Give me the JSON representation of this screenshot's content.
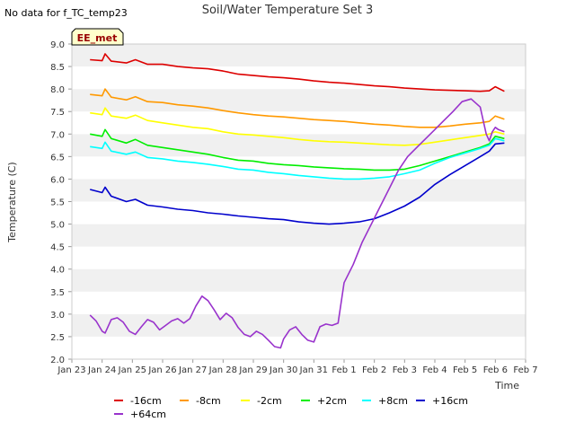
{
  "note": "No data for f_TC_temp23",
  "chart_data": {
    "type": "line",
    "title": "Soil/Water Temperature Set 3",
    "xlabel": "Time",
    "ylabel": "Temperature (C)",
    "badge": "EE_met",
    "xlim": [
      23,
      38
    ],
    "ylim": [
      2.0,
      9.0
    ],
    "grid": "horizontal bands",
    "legend_position": "bottom",
    "x_ticks": [
      {
        "x": 23,
        "label": "Jan 23"
      },
      {
        "x": 24,
        "label": "Jan 24"
      },
      {
        "x": 25,
        "label": "Jan 25"
      },
      {
        "x": 26,
        "label": "Jan 26"
      },
      {
        "x": 27,
        "label": "Jan 27"
      },
      {
        "x": 28,
        "label": "Jan 28"
      },
      {
        "x": 29,
        "label": "Jan 29"
      },
      {
        "x": 30,
        "label": "Jan 30"
      },
      {
        "x": 31,
        "label": "Jan 31"
      },
      {
        "x": 32,
        "label": "Feb 1"
      },
      {
        "x": 33,
        "label": "Feb 2"
      },
      {
        "x": 34,
        "label": "Feb 3"
      },
      {
        "x": 35,
        "label": "Feb 4"
      },
      {
        "x": 36,
        "label": "Feb 5"
      },
      {
        "x": 37,
        "label": "Feb 6"
      },
      {
        "x": 38,
        "label": "Feb 7"
      }
    ],
    "y_ticks": [
      2.0,
      2.5,
      3.0,
      3.5,
      4.0,
      4.5,
      5.0,
      5.5,
      6.0,
      6.5,
      7.0,
      7.5,
      8.0,
      8.5,
      9.0
    ],
    "series": [
      {
        "name": "-16cm",
        "color": "#dd0000",
        "x": [
          23.6,
          24.0,
          24.1,
          24.3,
          24.8,
          25.1,
          25.5,
          26.0,
          26.5,
          27.0,
          27.5,
          28.0,
          28.5,
          29.0,
          29.5,
          30.0,
          30.5,
          31.0,
          31.5,
          32.0,
          32.5,
          33.0,
          33.5,
          34.0,
          34.5,
          35.0,
          35.5,
          36.0,
          36.5,
          36.8,
          37.0,
          37.3
        ],
        "y": [
          8.65,
          8.63,
          8.78,
          8.62,
          8.58,
          8.65,
          8.55,
          8.55,
          8.5,
          8.47,
          8.45,
          8.4,
          8.33,
          8.3,
          8.27,
          8.25,
          8.22,
          8.18,
          8.15,
          8.13,
          8.1,
          8.07,
          8.05,
          8.02,
          8.0,
          7.98,
          7.97,
          7.96,
          7.95,
          7.96,
          8.05,
          7.95
        ]
      },
      {
        "name": "-8cm",
        "color": "#ff9900",
        "x": [
          23.6,
          24.0,
          24.1,
          24.3,
          24.8,
          25.1,
          25.5,
          26.0,
          26.5,
          27.0,
          27.5,
          28.0,
          28.5,
          29.0,
          29.5,
          30.0,
          30.5,
          31.0,
          31.5,
          32.0,
          32.5,
          33.0,
          33.5,
          34.0,
          34.5,
          35.0,
          35.5,
          36.0,
          36.5,
          36.8,
          37.0,
          37.3
        ],
        "y": [
          7.88,
          7.85,
          8.0,
          7.82,
          7.76,
          7.83,
          7.72,
          7.7,
          7.65,
          7.62,
          7.58,
          7.52,
          7.47,
          7.43,
          7.4,
          7.38,
          7.35,
          7.32,
          7.3,
          7.28,
          7.25,
          7.22,
          7.2,
          7.17,
          7.15,
          7.15,
          7.18,
          7.22,
          7.25,
          7.28,
          7.4,
          7.33
        ]
      },
      {
        "name": "-2cm",
        "color": "#ffff00",
        "x": [
          23.6,
          24.0,
          24.1,
          24.3,
          24.8,
          25.1,
          25.5,
          26.0,
          26.5,
          27.0,
          27.5,
          28.0,
          28.5,
          29.0,
          29.5,
          30.0,
          30.5,
          31.0,
          31.5,
          32.0,
          32.5,
          33.0,
          33.5,
          34.0,
          34.5,
          35.0,
          35.5,
          36.0,
          36.5,
          36.8,
          37.0,
          37.3
        ],
        "y": [
          7.47,
          7.43,
          7.58,
          7.4,
          7.35,
          7.42,
          7.3,
          7.25,
          7.2,
          7.15,
          7.12,
          7.05,
          7.0,
          6.98,
          6.95,
          6.92,
          6.88,
          6.85,
          6.83,
          6.82,
          6.8,
          6.78,
          6.76,
          6.75,
          6.77,
          6.82,
          6.87,
          6.92,
          6.97,
          7.0,
          7.05,
          7.0
        ]
      },
      {
        "name": "+2cm",
        "color": "#00ee00",
        "x": [
          23.6,
          24.0,
          24.1,
          24.3,
          24.8,
          25.1,
          25.5,
          26.0,
          26.5,
          27.0,
          27.5,
          28.0,
          28.5,
          29.0,
          29.5,
          30.0,
          30.5,
          31.0,
          31.5,
          32.0,
          32.5,
          33.0,
          33.5,
          34.0,
          34.5,
          35.0,
          35.5,
          36.0,
          36.5,
          36.8,
          37.0,
          37.3
        ],
        "y": [
          7.0,
          6.95,
          7.1,
          6.9,
          6.8,
          6.88,
          6.75,
          6.7,
          6.65,
          6.6,
          6.55,
          6.48,
          6.42,
          6.4,
          6.35,
          6.32,
          6.3,
          6.27,
          6.25,
          6.23,
          6.22,
          6.2,
          6.2,
          6.22,
          6.3,
          6.4,
          6.5,
          6.6,
          6.7,
          6.78,
          6.95,
          6.9
        ]
      },
      {
        "name": "+8cm",
        "color": "#00ffff",
        "x": [
          23.6,
          24.0,
          24.1,
          24.3,
          24.8,
          25.1,
          25.5,
          26.0,
          26.5,
          27.0,
          27.5,
          28.0,
          28.5,
          29.0,
          29.5,
          30.0,
          30.5,
          31.0,
          31.5,
          32.0,
          32.5,
          33.0,
          33.5,
          34.0,
          34.5,
          35.0,
          35.5,
          36.0,
          36.5,
          36.8,
          37.0,
          37.3
        ],
        "y": [
          6.72,
          6.68,
          6.82,
          6.62,
          6.55,
          6.6,
          6.48,
          6.45,
          6.4,
          6.37,
          6.33,
          6.28,
          6.22,
          6.2,
          6.15,
          6.12,
          6.08,
          6.05,
          6.02,
          6.0,
          6.0,
          6.02,
          6.05,
          6.12,
          6.2,
          6.35,
          6.48,
          6.58,
          6.68,
          6.75,
          6.9,
          6.85
        ]
      },
      {
        "name": "+16cm",
        "color": "#0000cc",
        "x": [
          23.6,
          24.0,
          24.1,
          24.3,
          24.8,
          25.1,
          25.5,
          26.0,
          26.5,
          27.0,
          27.5,
          28.0,
          28.5,
          29.0,
          29.5,
          30.0,
          30.5,
          31.0,
          31.5,
          32.0,
          32.5,
          33.0,
          33.5,
          34.0,
          34.5,
          35.0,
          35.5,
          36.0,
          36.5,
          36.8,
          37.0,
          37.3
        ],
        "y": [
          5.77,
          5.7,
          5.82,
          5.62,
          5.5,
          5.55,
          5.42,
          5.38,
          5.33,
          5.3,
          5.25,
          5.22,
          5.18,
          5.15,
          5.12,
          5.1,
          5.05,
          5.02,
          5.0,
          5.02,
          5.05,
          5.12,
          5.25,
          5.4,
          5.6,
          5.88,
          6.1,
          6.3,
          6.5,
          6.62,
          6.78,
          6.8
        ]
      },
      {
        "name": "+64cm",
        "color": "#9933cc",
        "x": [
          23.6,
          23.8,
          24.0,
          24.1,
          24.3,
          24.5,
          24.7,
          24.9,
          25.1,
          25.3,
          25.5,
          25.7,
          25.9,
          26.1,
          26.3,
          26.5,
          26.7,
          26.9,
          27.1,
          27.3,
          27.5,
          27.7,
          27.9,
          28.1,
          28.3,
          28.5,
          28.7,
          28.9,
          29.1,
          29.3,
          29.5,
          29.7,
          29.9,
          30.0,
          30.2,
          30.4,
          30.6,
          30.8,
          31.0,
          31.2,
          31.4,
          31.6,
          31.8,
          32.0,
          32.3,
          32.6,
          32.9,
          33.2,
          33.5,
          33.8,
          34.1,
          34.4,
          34.7,
          35.0,
          35.3,
          35.6,
          35.9,
          36.2,
          36.5,
          36.7,
          36.8,
          36.9,
          37.0,
          37.1,
          37.3
        ],
        "y": [
          2.98,
          2.85,
          2.62,
          2.58,
          2.88,
          2.92,
          2.82,
          2.62,
          2.55,
          2.72,
          2.88,
          2.82,
          2.65,
          2.75,
          2.85,
          2.9,
          2.8,
          2.9,
          3.18,
          3.4,
          3.3,
          3.1,
          2.88,
          3.02,
          2.92,
          2.7,
          2.55,
          2.5,
          2.62,
          2.55,
          2.42,
          2.28,
          2.25,
          2.45,
          2.65,
          2.72,
          2.55,
          2.42,
          2.38,
          2.72,
          2.78,
          2.75,
          2.8,
          3.7,
          4.1,
          4.6,
          5.0,
          5.4,
          5.8,
          6.2,
          6.5,
          6.7,
          6.9,
          7.1,
          7.3,
          7.5,
          7.72,
          7.78,
          7.6,
          7.0,
          6.85,
          7.05,
          7.15,
          7.1,
          7.05
        ]
      }
    ]
  }
}
